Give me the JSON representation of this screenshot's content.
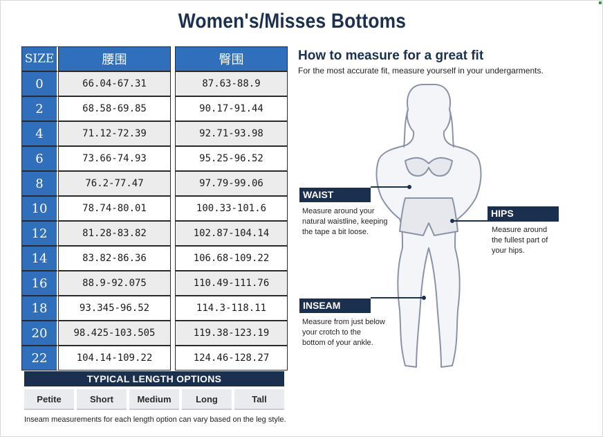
{
  "title": "Women's/Misses Bottoms",
  "size_table": {
    "headers": {
      "size": "SIZE",
      "waist": "腰围",
      "hip": "臀围"
    },
    "rows": [
      {
        "size": "0",
        "waist": "66.04-67.31",
        "hip": "87.63-88.9"
      },
      {
        "size": "2",
        "waist": "68.58-69.85",
        "hip": "90.17-91.44"
      },
      {
        "size": "4",
        "waist": "71.12-72.39",
        "hip": "92.71-93.98"
      },
      {
        "size": "6",
        "waist": "73.66-74.93",
        "hip": "95.25-96.52"
      },
      {
        "size": "8",
        "waist": "76.2-77.47",
        "hip": "97.79-99.06"
      },
      {
        "size": "10",
        "waist": "78.74-80.01",
        "hip": "100.33-101.6"
      },
      {
        "size": "12",
        "waist": "81.28-83.82",
        "hip": "102.87-104.14"
      },
      {
        "size": "14",
        "waist": "83.82-86.36",
        "hip": "106.68-109.22"
      },
      {
        "size": "16",
        "waist": "88.9-92.075",
        "hip": "110.49-111.76"
      },
      {
        "size": "18",
        "waist": "93.345-96.52",
        "hip": "114.3-118.11"
      },
      {
        "size": "20",
        "waist": "98.425-103.505",
        "hip": "119.38-123.19"
      },
      {
        "size": "22",
        "waist": "104.14-109.22",
        "hip": "124.46-128.27"
      }
    ]
  },
  "length_options": {
    "header": "TYPICAL LENGTH OPTIONS",
    "options": [
      "Petite",
      "Short",
      "Medium",
      "Long",
      "Tall"
    ],
    "note": "Inseam measurements for each length option can vary based on the leg style."
  },
  "measure": {
    "title": "How to measure for a great fit",
    "subtitle": "For the most accurate fit, measure yourself in your undergarments.",
    "waist": {
      "label": "WAIST",
      "lines": [
        "Measure around your",
        "natural waistline, keeping",
        "the tape a bit loose."
      ]
    },
    "hips": {
      "label": "HIPS",
      "lines": [
        "Measure around",
        "the fullest part of",
        "your hips."
      ]
    },
    "inseam": {
      "label": "INSEAM",
      "lines": [
        "Measure from just below",
        "your crotch to the",
        "bottom of your ankle."
      ]
    }
  },
  "colors": {
    "navy": "#1b2f4e",
    "table_blue": "#2f6fbb",
    "row_gray": "#ececec"
  }
}
